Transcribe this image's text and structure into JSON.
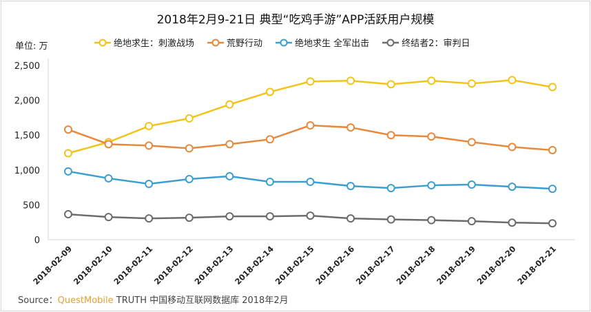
{
  "chart_data": {
    "type": "line",
    "title": "2018年2月9-21日 典型“吃鸡手游”APP活跃用户规模",
    "ylabel": "单位: 万",
    "ylim": [
      0,
      2500
    ],
    "yticks": [
      "0",
      "500",
      "1,000",
      "1,500",
      "2,000",
      "2,500"
    ],
    "ytick_values": [
      0,
      500,
      1000,
      1500,
      2000,
      2500
    ],
    "grid": false,
    "legend_position": "top",
    "categories": [
      "2018-02-09",
      "2018-02-10",
      "2018-02-11",
      "2018-02-12",
      "2018-02-13",
      "2018-02-14",
      "2018-02-15",
      "2018-02-16",
      "2018-02-17",
      "2018-02-18",
      "2018-02-19",
      "2018-02-20",
      "2018-02-21"
    ],
    "series": [
      {
        "name": "绝地求生：刺激战场",
        "color": "#f0c419",
        "values": [
          1240,
          1400,
          1630,
          1740,
          1940,
          2120,
          2270,
          2280,
          2230,
          2280,
          2240,
          2290,
          2190
        ]
      },
      {
        "name": "荒野行动",
        "color": "#e8883a",
        "values": [
          1580,
          1370,
          1350,
          1310,
          1370,
          1440,
          1640,
          1610,
          1500,
          1480,
          1400,
          1330,
          1285
        ]
      },
      {
        "name": "绝地求生 全军出击",
        "color": "#3a9fd0",
        "values": [
          980,
          880,
          800,
          870,
          910,
          830,
          830,
          770,
          740,
          780,
          790,
          760,
          730
        ]
      },
      {
        "name": "终结者2：审判日",
        "color": "#6b6b6b",
        "values": [
          365,
          325,
          305,
          315,
          335,
          335,
          345,
          305,
          290,
          280,
          265,
          245,
          235
        ]
      }
    ]
  },
  "source": {
    "prefix": "Source：",
    "brand": "QuestMobile",
    "rest": " TRUTH 中国移动互联网数据库 2018年2月"
  }
}
